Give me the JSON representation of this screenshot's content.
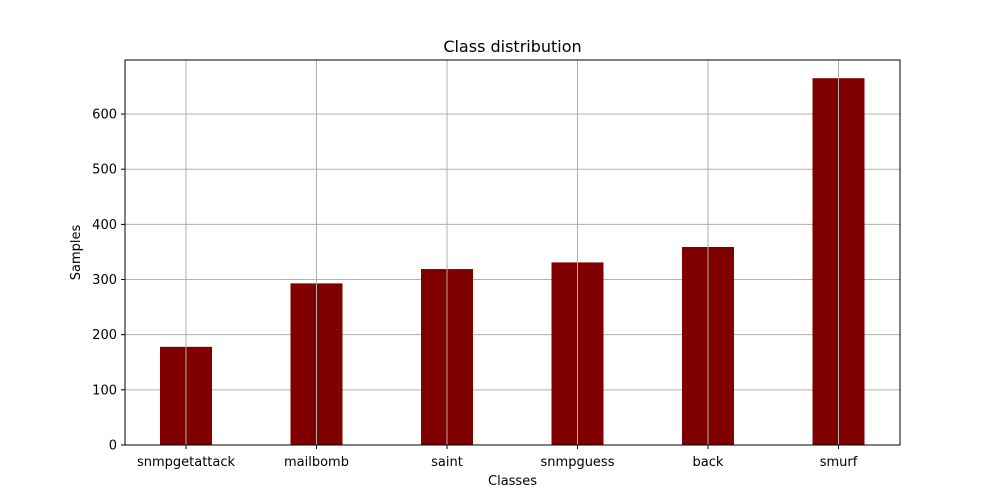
{
  "chart_data": {
    "type": "bar",
    "title": "Class distribution",
    "xlabel": "Classes",
    "ylabel": "Samples",
    "categories": [
      "snmpgetattack",
      "mailbomb",
      "saint",
      "snmpguess",
      "back",
      "smurf"
    ],
    "values": [
      178,
      293,
      319,
      331,
      359,
      665
    ],
    "ylim": [
      0,
      698
    ],
    "yticks": [
      0,
      100,
      200,
      300,
      400,
      500,
      600
    ],
    "grid": true,
    "bar_color": "#800000",
    "grid_color": "#b0b0b0"
  }
}
